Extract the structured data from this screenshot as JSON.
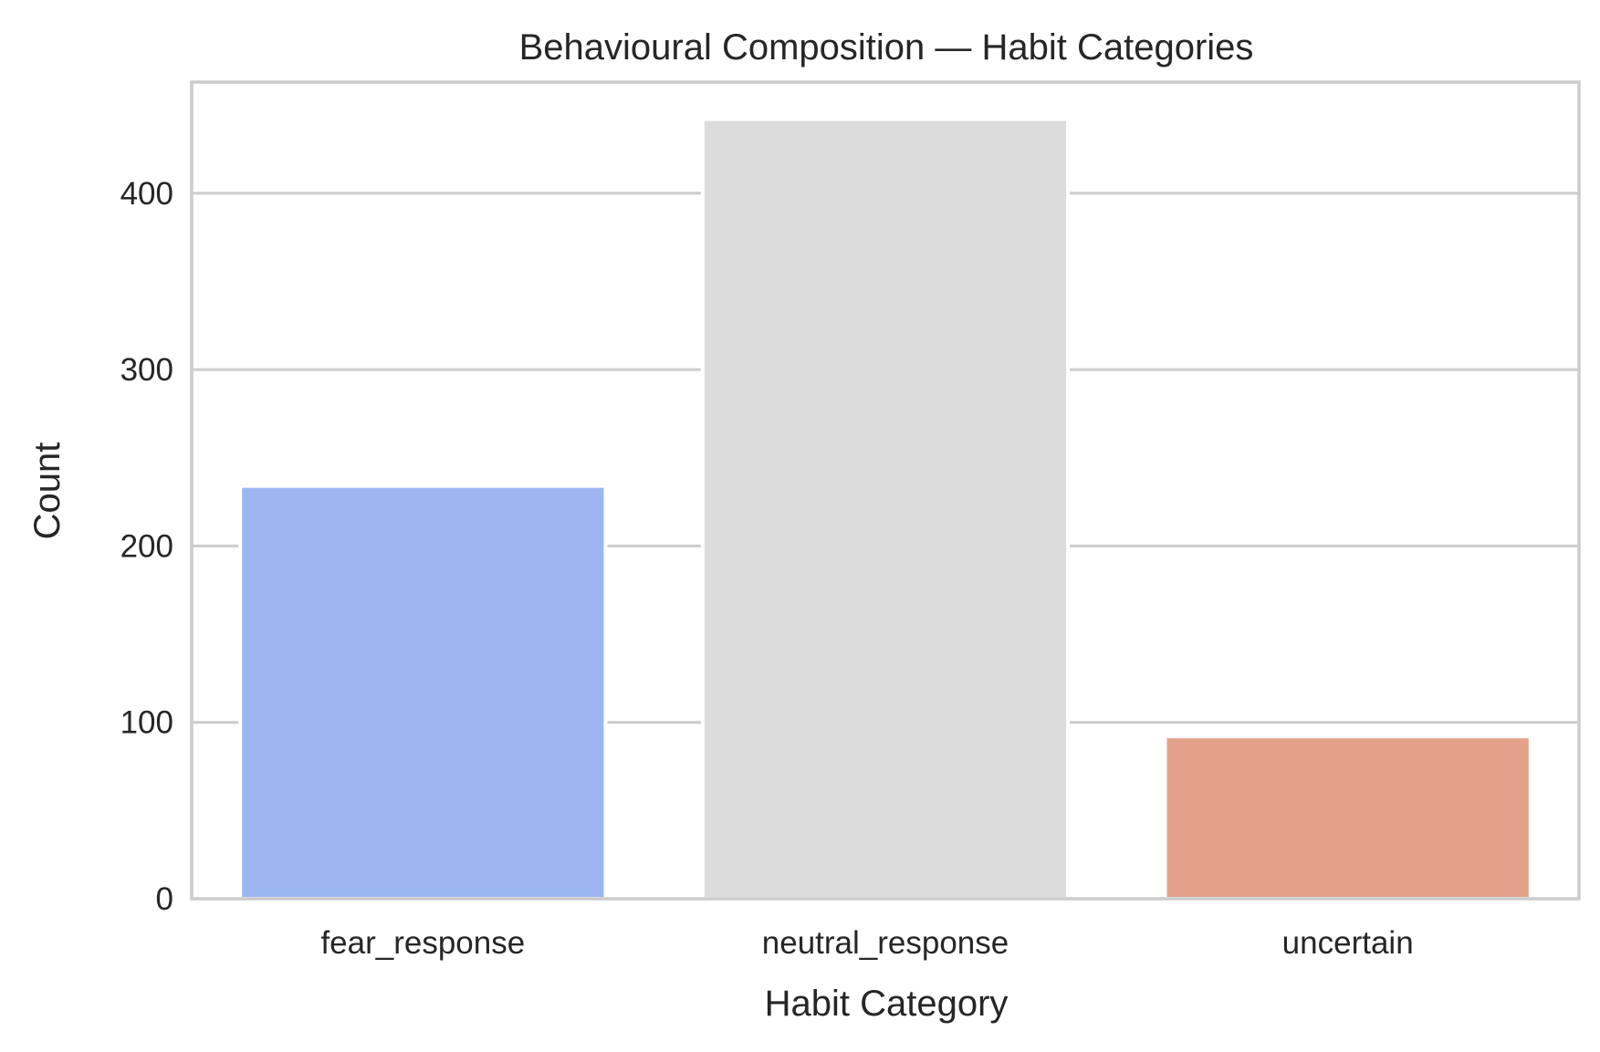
{
  "chart_data": {
    "type": "bar",
    "title": "Behavioural Composition — Habit Categories",
    "xlabel": "Habit Category",
    "ylabel": "Count",
    "categories": [
      "fear_response",
      "neutral_response",
      "uncertain"
    ],
    "values": [
      234,
      442,
      92
    ],
    "colors": [
      "#9bb6f0",
      "#dcdcdc",
      "#e4a18a"
    ],
    "ylim": [
      0,
      463
    ],
    "yticks": [
      0,
      100,
      200,
      300,
      400
    ],
    "grid": true,
    "legend": "none"
  }
}
